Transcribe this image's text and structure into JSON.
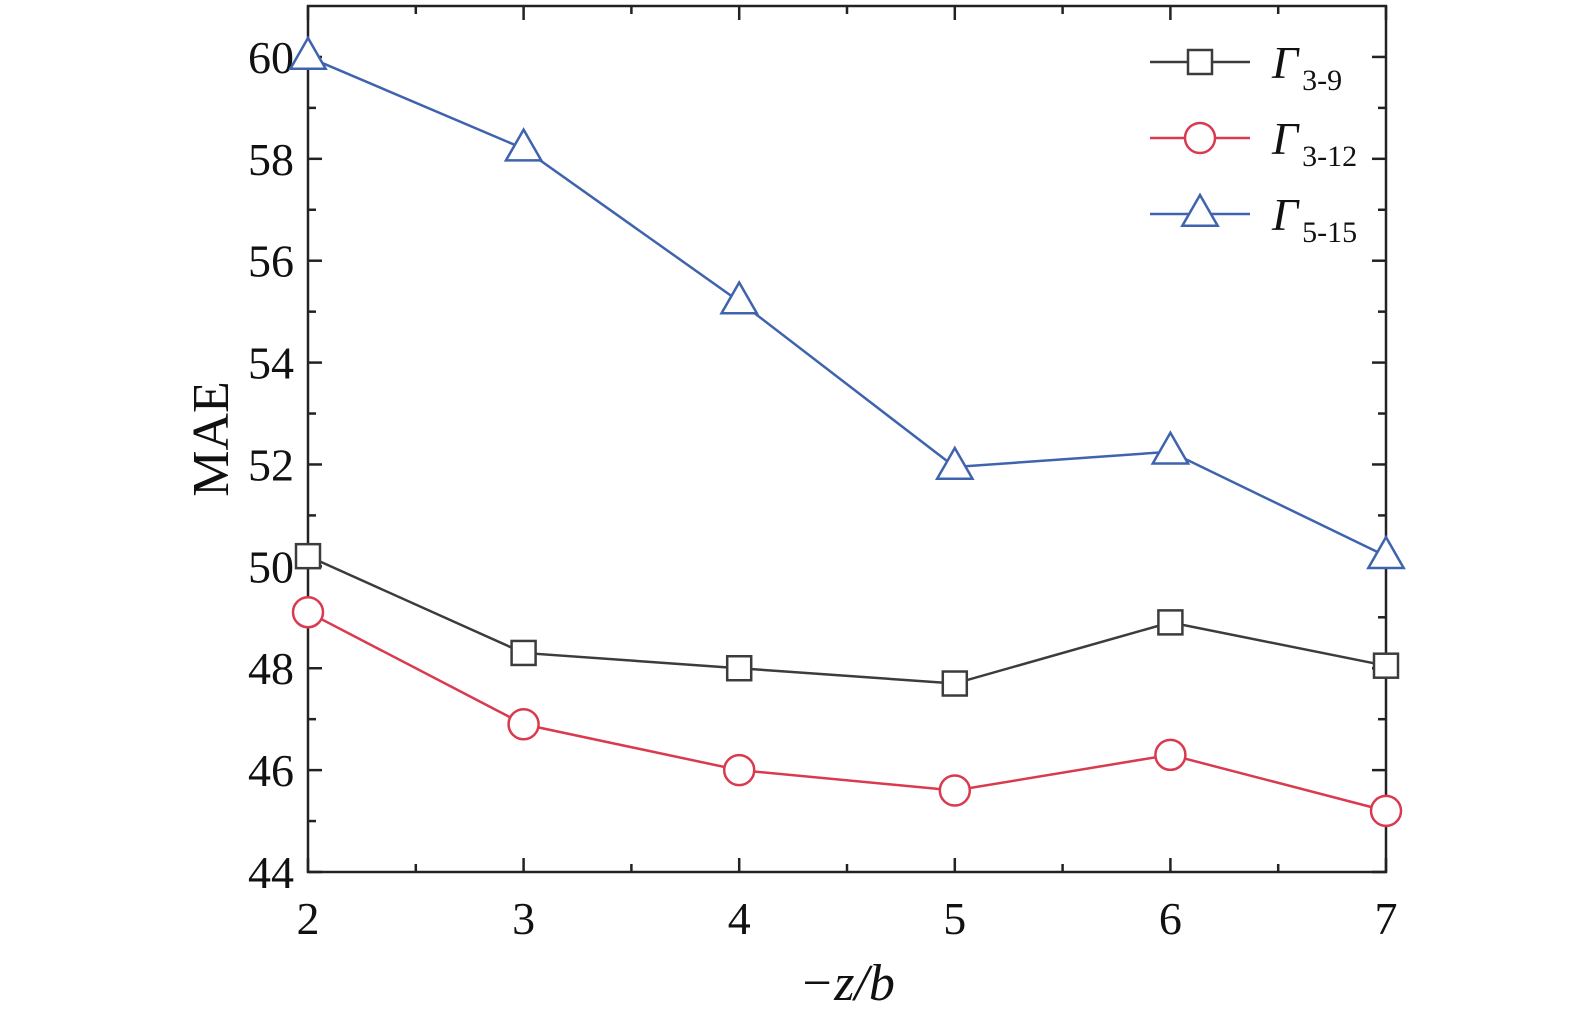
{
  "chart_data": {
    "type": "line",
    "xlabel": "−z/b",
    "ylabel": "MAE",
    "x": [
      2,
      3,
      4,
      5,
      6,
      7
    ],
    "xlim": [
      2,
      7
    ],
    "ylim": [
      44,
      61
    ],
    "xticks": [
      2,
      3,
      4,
      5,
      6,
      7
    ],
    "xtick_labels": [
      "2",
      "3",
      "4",
      "5",
      "6",
      "7"
    ],
    "yticks": [
      44,
      46,
      48,
      50,
      52,
      54,
      56,
      58,
      60
    ],
    "ytick_labels": [
      "44",
      "46",
      "48",
      "50",
      "52",
      "54",
      "56",
      "58",
      "60"
    ],
    "grid": false,
    "legend_position": "top-right",
    "series": [
      {
        "name": "Γ",
        "name_subscript": "3-9",
        "marker": "square",
        "color": "#3c3c3c",
        "values": [
          50.2,
          48.3,
          48.0,
          47.7,
          48.9,
          48.05
        ]
      },
      {
        "name": "Γ",
        "name_subscript": "3-12",
        "marker": "circle",
        "color": "#d93a4e",
        "values": [
          49.1,
          46.9,
          46.0,
          45.6,
          46.3,
          45.2
        ]
      },
      {
        "name": "Γ",
        "name_subscript": "5-15",
        "marker": "triangle",
        "color": "#3f63ad",
        "values": [
          60.0,
          58.2,
          55.2,
          51.95,
          52.25,
          50.2
        ]
      }
    ]
  }
}
